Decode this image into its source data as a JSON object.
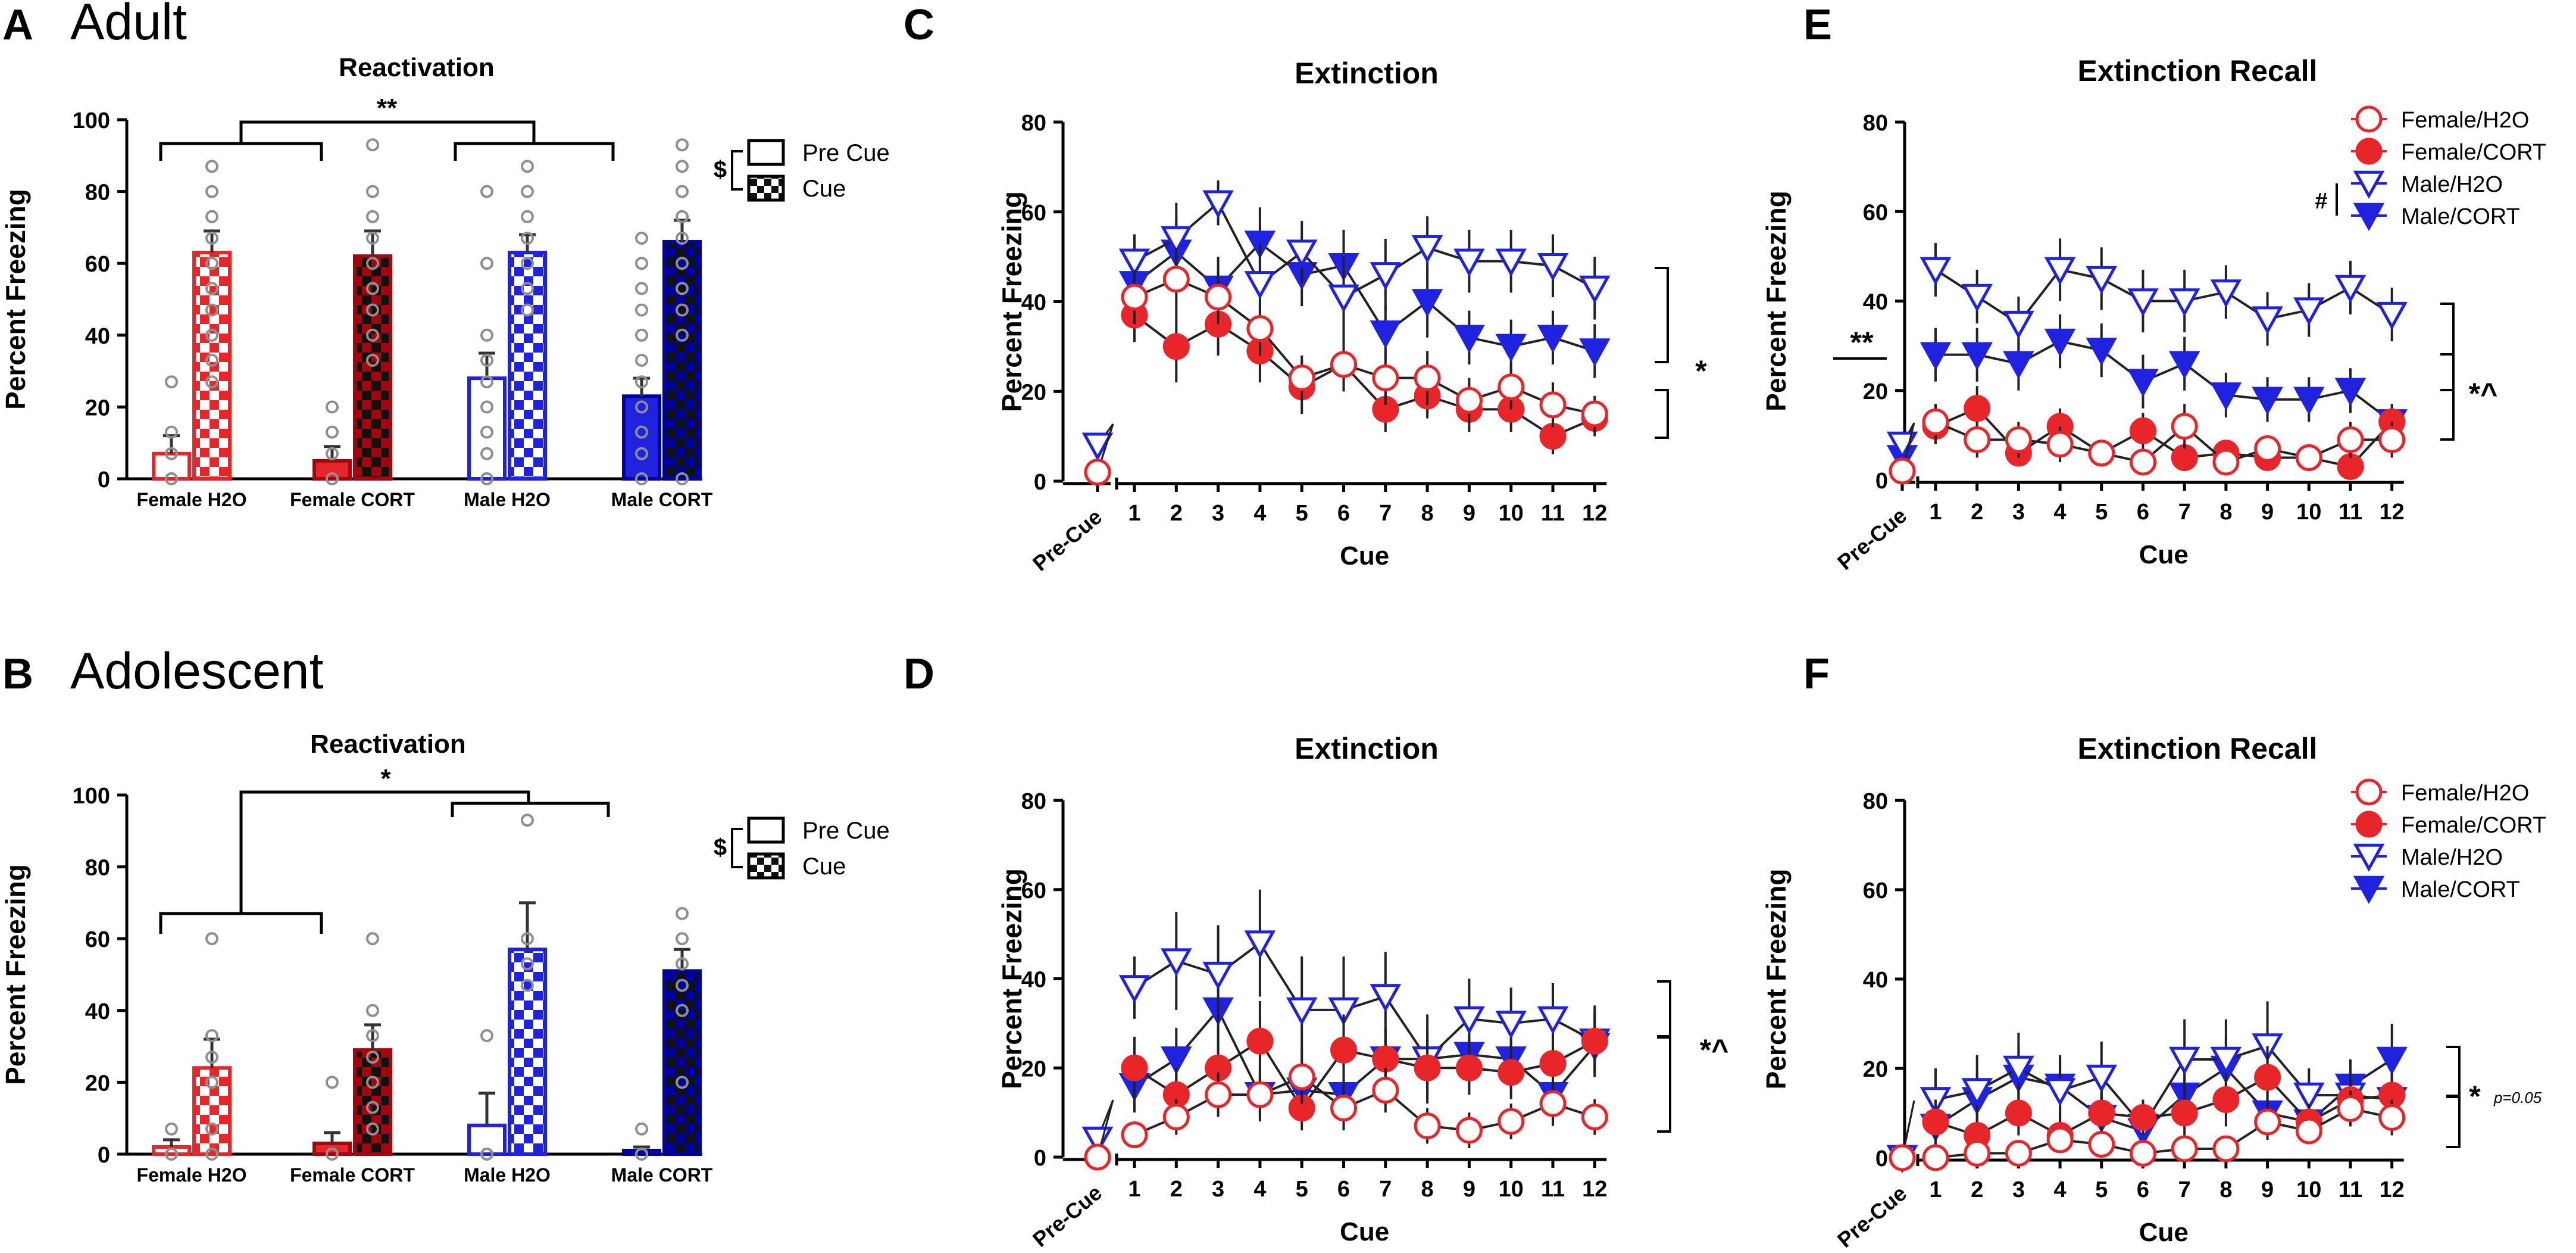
{
  "colors": {
    "red": "#e8262a",
    "blue": "#1f23e0",
    "dark_red": "#a3060c",
    "dark_blue": "#00009e",
    "error": "#333333",
    "dot": "#8f8f8f"
  },
  "chart_data": [
    {
      "id": "A",
      "type": "bar",
      "panel_letter": "A",
      "heading": "Adult",
      "title": "Reactivation",
      "ylabel": "Percent Freezing",
      "ylim": [
        0,
        100
      ],
      "yticks": [
        "0",
        "20",
        "40",
        "60",
        "80",
        "100"
      ],
      "groups": [
        "Female H2O",
        "Female CORT",
        "Male H2O",
        "Male CORT"
      ],
      "series": [
        {
          "name": "Pre Cue",
          "values": [
            7,
            5,
            28,
            23
          ],
          "errors": [
            5,
            4,
            7,
            5
          ]
        },
        {
          "name": "Cue",
          "values": [
            63,
            62,
            63,
            66
          ],
          "errors": [
            6,
            7,
            5,
            6
          ]
        }
      ],
      "points": [
        [
          [
            0,
            0,
            7,
            13,
            27
          ],
          [
            27,
            33,
            40,
            47,
            53,
            60,
            67,
            73,
            80,
            87
          ]
        ],
        [
          [
            0,
            0,
            7,
            13,
            20
          ],
          [
            33,
            40,
            47,
            53,
            60,
            67,
            73,
            80,
            93
          ]
        ],
        [
          [
            0,
            0,
            7,
            13,
            20,
            27,
            33,
            40,
            60,
            80
          ],
          [
            47,
            53,
            60,
            67,
            73,
            80,
            87
          ]
        ],
        [
          [
            0,
            7,
            13,
            20,
            27,
            33,
            40,
            47,
            53,
            60,
            67
          ],
          [
            0,
            40,
            47,
            53,
            60,
            67,
            73,
            80,
            87,
            93
          ]
        ]
      ],
      "legend": {
        "items": [
          "Pre Cue",
          "Cue"
        ],
        "symbol": "$"
      },
      "brackets": [
        {
          "from": 0,
          "to": 1,
          "label": "**",
          "level": "outer"
        }
      ]
    },
    {
      "id": "B",
      "type": "bar",
      "panel_letter": "B",
      "heading": "Adolescent",
      "title": "Reactivation",
      "ylabel": "Percent Freezing",
      "ylim": [
        0,
        100
      ],
      "yticks": [
        "0",
        "20",
        "40",
        "60",
        "80",
        "100"
      ],
      "groups": [
        "Female H2O",
        "Female CORT",
        "Male H2O",
        "Male CORT"
      ],
      "series": [
        {
          "name": "Pre Cue",
          "values": [
            2,
            3,
            8,
            1
          ],
          "errors": [
            2,
            3,
            9,
            1
          ]
        },
        {
          "name": "Cue",
          "values": [
            24,
            29,
            57,
            51
          ],
          "errors": [
            8,
            7,
            13,
            6
          ]
        }
      ],
      "points": [
        [
          [
            0,
            0,
            0,
            7
          ],
          [
            0,
            7,
            20,
            27,
            33,
            60
          ]
        ],
        [
          [
            0,
            0,
            0,
            20
          ],
          [
            7,
            13,
            20,
            27,
            33,
            40,
            60
          ]
        ],
        [
          [
            0,
            0,
            0,
            33
          ],
          [
            47,
            53,
            60,
            93
          ]
        ],
        [
          [
            0,
            0,
            0,
            7
          ],
          [
            20,
            40,
            47,
            53,
            60,
            67
          ]
        ]
      ],
      "legend": {
        "items": [
          "Pre Cue",
          "Cue"
        ],
        "symbol": "$"
      },
      "brackets": [
        {
          "from": 0,
          "to": 2,
          "label": "*",
          "level": "outer"
        }
      ]
    },
    {
      "id": "C",
      "type": "line",
      "panel_letter": "C",
      "title": "Extinction",
      "xlabel": "Cue",
      "ylabel": "Percent Freezing",
      "ylim": [
        0,
        80
      ],
      "yticks": [
        "0",
        "20",
        "40",
        "60",
        "80"
      ],
      "categories": [
        "1",
        "2",
        "3",
        "4",
        "5",
        "6",
        "7",
        "8",
        "9",
        "10",
        "11",
        "12"
      ],
      "pre_label": "Pre-Cue",
      "series": [
        {
          "name": "Female/H2O",
          "pre": 2,
          "values": [
            41,
            45,
            41,
            34,
            23,
            26,
            23,
            23,
            18,
            21,
            17,
            15
          ],
          "errors": [
            6,
            7,
            6,
            6,
            5,
            6,
            6,
            6,
            5,
            5,
            5,
            4
          ]
        },
        {
          "name": "Female/CORT",
          "pre": 2,
          "values": [
            37,
            30,
            35,
            29,
            21,
            26,
            16,
            19,
            16,
            16,
            10,
            14
          ],
          "errors": [
            6,
            8,
            7,
            7,
            6,
            6,
            5,
            5,
            5,
            5,
            4,
            4
          ]
        },
        {
          "name": "Male/H2O",
          "pre": 8,
          "values": [
            49,
            54,
            62,
            44,
            51,
            41,
            46,
            52,
            49,
            49,
            48,
            43
          ],
          "errors": [
            6,
            8,
            5,
            9,
            7,
            9,
            8,
            7,
            7,
            7,
            7,
            7
          ]
        },
        {
          "name": "Male/CORT",
          "pre": 8,
          "values": [
            44,
            51,
            43,
            53,
            46,
            48,
            33,
            40,
            32,
            30,
            32,
            29
          ],
          "errors": [
            6,
            7,
            7,
            8,
            7,
            8,
            6,
            8,
            6,
            6,
            6,
            6
          ]
        }
      ],
      "annotations": [
        {
          "label": "*"
        }
      ]
    },
    {
      "id": "D",
      "type": "line",
      "panel_letter": "D",
      "title": "Extinction",
      "xlabel": "Cue",
      "ylabel": "Percent Freezing",
      "ylim": [
        0,
        80
      ],
      "yticks": [
        "0",
        "20",
        "40",
        "60",
        "80"
      ],
      "categories": [
        "1",
        "2",
        "3",
        "4",
        "5",
        "6",
        "7",
        "8",
        "9",
        "10",
        "11",
        "12"
      ],
      "pre_label": "Pre-Cue",
      "series": [
        {
          "name": "Female/H2O",
          "pre": 0,
          "values": [
            5,
            9,
            14,
            14,
            18,
            11,
            15,
            7,
            6,
            8,
            12,
            9
          ],
          "errors": [
            3,
            4,
            5,
            5,
            6,
            5,
            5,
            4,
            4,
            4,
            5,
            4
          ]
        },
        {
          "name": "Female/CORT",
          "pre": 0,
          "values": [
            20,
            14,
            20,
            26,
            11,
            24,
            22,
            20,
            20,
            19,
            21,
            26
          ],
          "errors": [
            7,
            6,
            7,
            9,
            5,
            8,
            7,
            7,
            6,
            6,
            6,
            7
          ]
        },
        {
          "name": "Male/H2O",
          "pre": 4,
          "values": [
            38,
            44,
            41,
            48,
            33,
            33,
            36,
            22,
            31,
            30,
            31,
            26
          ],
          "errors": [
            7,
            11,
            11,
            12,
            12,
            12,
            10,
            10,
            9,
            8,
            8,
            8
          ]
        },
        {
          "name": "Male/CORT",
          "pre": 4,
          "values": [
            16,
            22,
            33,
            14,
            15,
            14,
            22,
            22,
            23,
            22,
            14,
            25
          ],
          "errors": [
            6,
            7,
            9,
            6,
            6,
            5,
            7,
            7,
            7,
            7,
            6,
            7
          ]
        }
      ],
      "annotations": [
        {
          "label": "*^"
        }
      ]
    },
    {
      "id": "E",
      "type": "line",
      "panel_letter": "E",
      "title": "Extinction Recall",
      "xlabel": "Cue",
      "ylabel": "Percent Freezing",
      "ylim": [
        0,
        80
      ],
      "yticks": [
        "0",
        "20",
        "40",
        "60",
        "80"
      ],
      "categories": [
        "1",
        "2",
        "3",
        "4",
        "5",
        "6",
        "7",
        "8",
        "9",
        "10",
        "11",
        "12"
      ],
      "pre_label": "Pre-Cue",
      "series": [
        {
          "name": "Female/H2O",
          "pre": 2,
          "values": [
            13,
            9,
            9,
            8,
            6,
            4,
            12,
            4,
            7,
            5,
            9,
            9
          ],
          "errors": [
            4,
            4,
            4,
            4,
            3,
            3,
            5,
            3,
            3,
            3,
            4,
            4
          ]
        },
        {
          "name": "Female/CORT",
          "pre": 2,
          "values": [
            12,
            16,
            6,
            12,
            6,
            11,
            5,
            6,
            5,
            5,
            3,
            13
          ],
          "errors": [
            4,
            5,
            3,
            4,
            3,
            4,
            3,
            3,
            3,
            3,
            2,
            4
          ]
        },
        {
          "name": "Male/H2O",
          "pre": 8,
          "values": [
            47,
            41,
            35,
            47,
            45,
            40,
            40,
            42,
            36,
            38,
            43,
            37
          ],
          "errors": [
            6,
            6,
            6,
            7,
            7,
            7,
            7,
            6,
            6,
            6,
            6,
            6
          ]
        },
        {
          "name": "Male/CORT",
          "pre": 5,
          "values": [
            28,
            28,
            26,
            31,
            29,
            22,
            26,
            19,
            18,
            18,
            20,
            13
          ],
          "errors": [
            6,
            6,
            6,
            6,
            6,
            6,
            6,
            5,
            5,
            5,
            5,
            4
          ]
        }
      ],
      "legend": {
        "items": [
          "Female/H2O",
          "Female/CORT",
          "Male/H2O",
          "Male/CORT"
        ],
        "symbol": "#"
      },
      "annotations": [
        {
          "label": "**"
        },
        {
          "label": "*^"
        }
      ]
    },
    {
      "id": "F",
      "type": "line",
      "panel_letter": "F",
      "title": "Extinction Recall",
      "xlabel": "Cue",
      "ylabel": "Percent Freezing",
      "ylim": [
        0,
        80
      ],
      "yticks": [
        "0",
        "20",
        "40",
        "60",
        "80"
      ],
      "categories": [
        "1",
        "2",
        "3",
        "4",
        "5",
        "6",
        "7",
        "8",
        "9",
        "10",
        "11",
        "12"
      ],
      "pre_label": "Pre-Cue",
      "series": [
        {
          "name": "Female/H2O",
          "pre": 0,
          "values": [
            0,
            1,
            1,
            4,
            3,
            1,
            2,
            2,
            8,
            6,
            11,
            9
          ],
          "errors": [
            1,
            2,
            2,
            3,
            3,
            1,
            2,
            2,
            4,
            3,
            4,
            4
          ]
        },
        {
          "name": "Female/CORT",
          "pre": 0,
          "values": [
            8,
            5,
            10,
            5,
            10,
            9,
            10,
            13,
            18,
            8,
            13,
            14
          ],
          "errors": [
            5,
            4,
            5,
            4,
            5,
            4,
            5,
            6,
            7,
            4,
            5,
            5
          ]
        },
        {
          "name": "Male/H2O",
          "pre": 0,
          "values": [
            13,
            15,
            20,
            15,
            18,
            7,
            22,
            22,
            25,
            14,
            14,
            13
          ],
          "errors": [
            7,
            8,
            8,
            7,
            8,
            5,
            9,
            9,
            10,
            6,
            7,
            6
          ]
        },
        {
          "name": "Male/CORT",
          "pre": 0,
          "values": [
            7,
            13,
            18,
            16,
            9,
            6,
            14,
            20,
            10,
            8,
            16,
            22
          ],
          "errors": [
            5,
            6,
            7,
            7,
            5,
            4,
            6,
            7,
            5,
            4,
            6,
            8
          ]
        }
      ],
      "legend": {
        "items": [
          "Female/H2O",
          "Female/CORT",
          "Male/H2O",
          "Male/CORT"
        ]
      },
      "annotations": [
        {
          "label": "*",
          "note": "p=0.05"
        }
      ]
    }
  ]
}
